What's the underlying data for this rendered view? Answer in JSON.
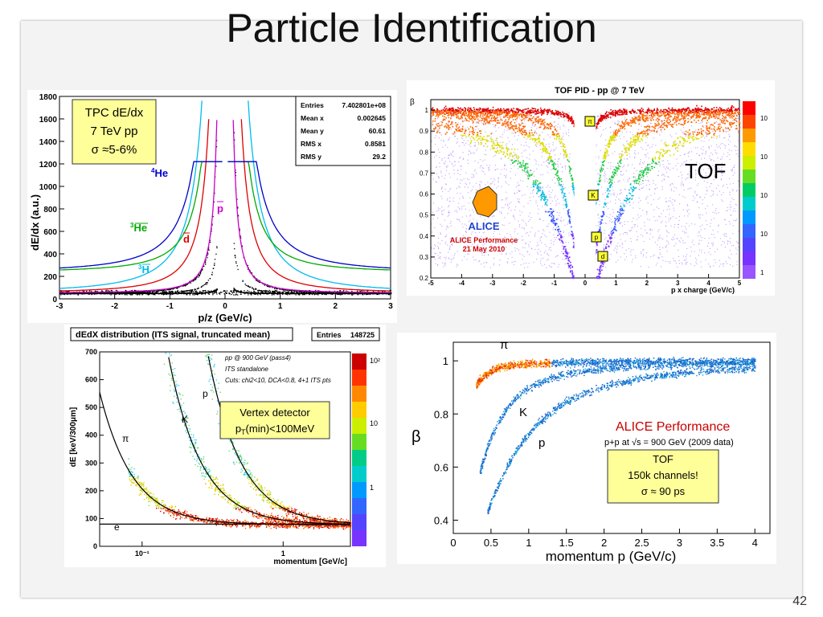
{
  "slide": {
    "title": "Particle Identification",
    "page_number": "42"
  },
  "chart_data": [
    {
      "type": "scatter",
      "panel": "tpc",
      "xlabel": "p/z (GeV/c)",
      "ylabel": "dE/dx (a.u.)",
      "xlim": [
        -3,
        3
      ],
      "ylim": [
        0,
        1800
      ],
      "xticks": [
        "-3",
        "-2",
        "-1",
        "0",
        "1",
        "2",
        "3"
      ],
      "yticks": [
        "0",
        "200",
        "400",
        "600",
        "800",
        "1000",
        "1200",
        "1400",
        "1600",
        "1800"
      ],
      "annotation_lines": [
        "TPC dE/dx",
        "7 TeV pp",
        "σ ≈5-6%"
      ],
      "series": [
        {
          "name": "p",
          "color": "#cc00cc"
        },
        {
          "name": "d",
          "color": "#dd0000"
        },
        {
          "name": "3H",
          "color": "#00bbee"
        },
        {
          "name": "3He",
          "color": "#00aa00"
        },
        {
          "name": "4He",
          "color": "#0000cc"
        }
      ],
      "series_labels": {
        "he4": "He",
        "he4_sup": "4",
        "he3": "He",
        "he3_sup": "3",
        "d": "d",
        "h3": "H",
        "h3_sup": "3",
        "p": "p"
      },
      "stats": [
        {
          "label": "Entries",
          "value": "7.402801e+08"
        },
        {
          "label": "Mean x",
          "value": "0.002645"
        },
        {
          "label": "Mean y",
          "value": "60.61"
        },
        {
          "label": "RMS x",
          "value": "0.8581"
        },
        {
          "label": "RMS y",
          "value": "29.2"
        }
      ]
    },
    {
      "type": "heatmap",
      "panel": "tof",
      "title": "TOF PID - pp @ 7 TeV",
      "xlabel": "p x charge (GeV/c)",
      "ylabel": "β",
      "xlim": [
        -5,
        5
      ],
      "ylim": [
        0.2,
        1.05
      ],
      "xticks": [
        "-5",
        "-4",
        "-3",
        "-2",
        "-1",
        "0",
        "1",
        "2",
        "3",
        "4",
        "5"
      ],
      "yticks": [
        "0.2",
        "0.3",
        "0.4",
        "0.5",
        "0.6",
        "0.7",
        "0.8",
        "0.9",
        "1"
      ],
      "colorbar_ticks": [
        "10",
        "10",
        "10",
        "10",
        "1"
      ],
      "text": "TOF",
      "logo_text": "ALICE",
      "performance_lines": [
        "ALICE Performance",
        "21 May 2010"
      ],
      "band_labels": [
        "π",
        "K",
        "p",
        "d"
      ]
    },
    {
      "type": "heatmap",
      "panel": "its",
      "title": "dEdX distribution (ITS signal, truncated mean)",
      "entries_label": "Entries",
      "entries_value": "148725",
      "xlabel": "momentum [GeV/c]",
      "ylabel": "dE [keV/300μm]",
      "xscale": "log",
      "xlim": [
        0.05,
        3
      ],
      "ylim": [
        0,
        700
      ],
      "xticks": [
        "10⁻¹",
        "1"
      ],
      "yticks": [
        "0",
        "100",
        "200",
        "300",
        "400",
        "500",
        "600",
        "700"
      ],
      "colorbar_ticks": [
        "10²",
        "10",
        "1"
      ],
      "notes": [
        "pp @ 900 GeV (pass4)",
        "ITS standalone",
        "Cuts: chi2<10, DCA<0.8, 4+1 ITS pts"
      ],
      "annotation_lines": [
        "Vertex detector",
        "p",
        "T",
        "(min)<100MeV"
      ],
      "band_labels": [
        "π",
        "K",
        "p",
        "e"
      ]
    },
    {
      "type": "scatter",
      "panel": "beta",
      "xlabel": "momentum p (GeV/c)",
      "ylabel": "β",
      "xlim": [
        0,
        4.2
      ],
      "ylim": [
        0.35,
        1.07
      ],
      "xticks": [
        "0",
        "0.5",
        "1",
        "1.5",
        "2",
        "2.5",
        "3",
        "3.5",
        "4"
      ],
      "yticks": [
        "0.4",
        "0.6",
        "0.8",
        "1"
      ],
      "header": "ALICE Performance",
      "subheader_prefix": "p+p at ",
      "subheader_sqrt": "√",
      "subheader_rest": "s = 900 GeV (2009 data)",
      "annotation_lines": [
        "TOF",
        "150k channels!",
        "σ ≈ 90 ps"
      ],
      "band_labels": [
        "π",
        "K",
        "p"
      ]
    }
  ]
}
